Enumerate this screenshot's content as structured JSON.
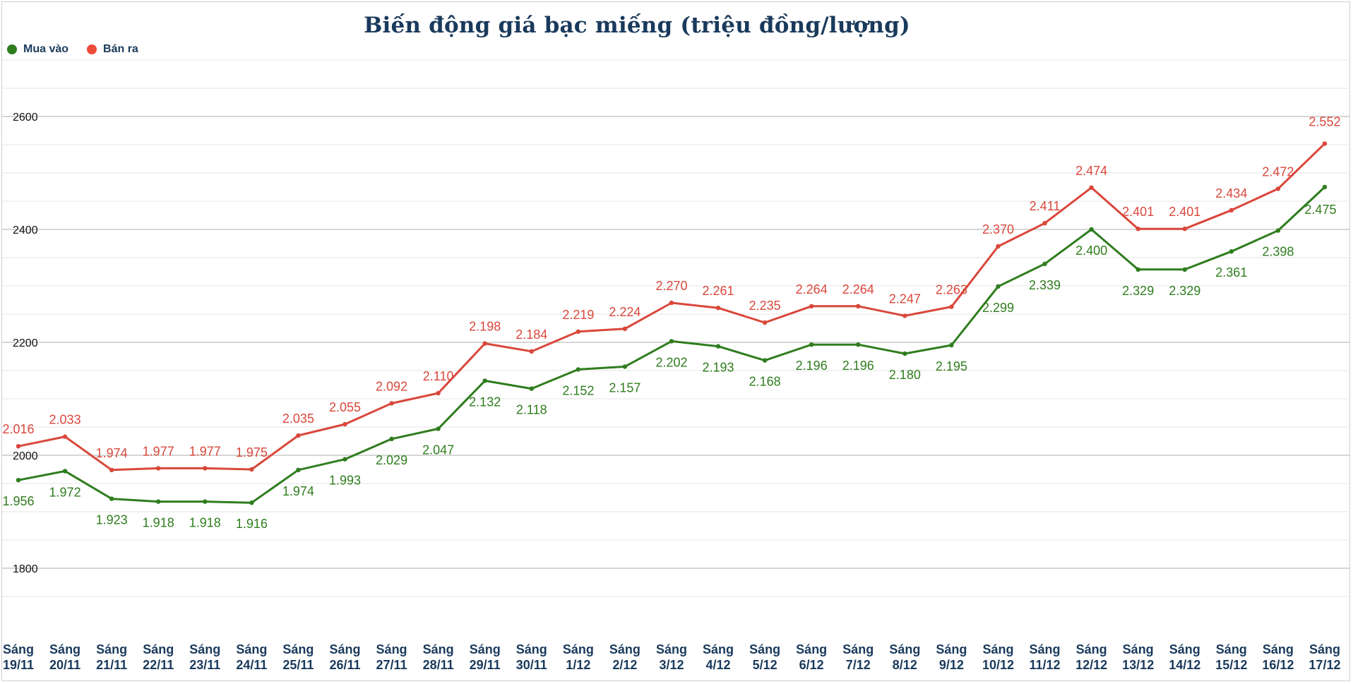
{
  "chart_data": {
    "type": "line",
    "title": "Biến động giá bạc miếng (triệu đồng/lượng)",
    "xlabel": "",
    "ylabel": "",
    "ylim": [
      1700,
      2700
    ],
    "yticks": [
      "1800",
      "2000",
      "2200",
      "2400",
      "2600"
    ],
    "grid": true,
    "legend": "top-left",
    "categories": [
      [
        "Sáng",
        "19/11"
      ],
      [
        "Sáng",
        "20/11"
      ],
      [
        "Sáng",
        "21/11"
      ],
      [
        "Sáng",
        "22/11"
      ],
      [
        "Sáng",
        "23/11"
      ],
      [
        "Sáng",
        "24/11"
      ],
      [
        "Sáng",
        "25/11"
      ],
      [
        "Sáng",
        "26/11"
      ],
      [
        "Sáng",
        "27/11"
      ],
      [
        "Sáng",
        "28/11"
      ],
      [
        "Sáng",
        "29/11"
      ],
      [
        "Sáng",
        "30/11"
      ],
      [
        "Sáng",
        "1/12"
      ],
      [
        "Sáng",
        "2/12"
      ],
      [
        "Sáng",
        "3/12"
      ],
      [
        "Sáng",
        "4/12"
      ],
      [
        "Sáng",
        "5/12"
      ],
      [
        "Sáng",
        "6/12"
      ],
      [
        "Sáng",
        "7/12"
      ],
      [
        "Sáng",
        "8/12"
      ],
      [
        "Sáng",
        "9/12"
      ],
      [
        "Sáng",
        "10/12"
      ],
      [
        "Sáng",
        "11/12"
      ],
      [
        "Sáng",
        "12/12"
      ],
      [
        "Sáng",
        "13/12"
      ],
      [
        "Sáng",
        "14/12"
      ],
      [
        "Sáng",
        "15/12"
      ],
      [
        "Sáng",
        "16/12"
      ],
      [
        "Sáng",
        "17/12"
      ]
    ],
    "series": [
      {
        "name": "Mua vào",
        "color": "#2f7d1e",
        "values": [
          1956,
          1972,
          1923,
          1918,
          1918,
          1916,
          1974,
          1993,
          2029,
          2047,
          2132,
          2118,
          2152,
          2157,
          2202,
          2193,
          2168,
          2196,
          2196,
          2180,
          2195,
          2299,
          2339,
          2400,
          2329,
          2329,
          2361,
          2398,
          2475
        ],
        "labels": [
          "1.956",
          "1.972",
          "1.923",
          "1.918",
          "1.918",
          "1.916",
          "1.974",
          "1.993",
          "2.029",
          "2.047",
          "2.132",
          "2.118",
          "2.152",
          "2.157",
          "2.202",
          "2.193",
          "2.168",
          "2.196",
          "2.196",
          "2.180",
          "2.195",
          "2.299",
          "2.339",
          "2.400",
          "2.329",
          "2.329",
          "2.361",
          "2.398",
          "2.475"
        ]
      },
      {
        "name": "Bán ra",
        "color": "#d9473b",
        "values": [
          2016,
          2033,
          1974,
          1977,
          1977,
          1975,
          2035,
          2055,
          2092,
          2110,
          2198,
          2184,
          2219,
          2224,
          2270,
          2261,
          2235,
          2264,
          2264,
          2247,
          2263,
          2370,
          2411,
          2474,
          2401,
          2401,
          2434,
          2472,
          2552
        ],
        "labels": [
          "2.016",
          "2.033",
          "1.974",
          "1.977",
          "1.977",
          "1.975",
          "2.035",
          "2.055",
          "2.092",
          "2.110",
          "2.198",
          "2.184",
          "2.219",
          "2.224",
          "2.270",
          "2.261",
          "2.235",
          "2.264",
          "2.264",
          "2.247",
          "2.263",
          "2.370",
          "2.411",
          "2.474",
          "2.401",
          "2.401",
          "2.434",
          "2.472",
          "2.552"
        ]
      }
    ]
  }
}
